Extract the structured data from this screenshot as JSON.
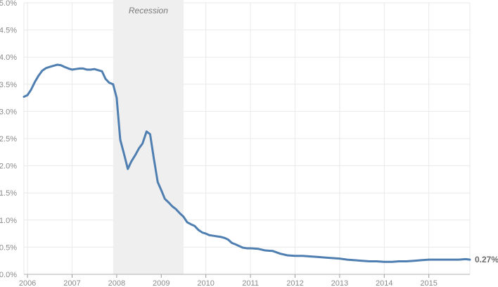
{
  "chart_data": {
    "type": "line",
    "x_unit": "year",
    "xlim": [
      2005.92,
      2015.92
    ],
    "ylim": [
      0,
      5.0
    ],
    "grid": true,
    "legend": "none",
    "y_ticks": [
      "0.0%",
      "0.5%",
      "1.0%",
      "1.5%",
      "2.0%",
      "2.5%",
      "3.0%",
      "3.5%",
      "4.0%",
      "4.5%",
      "5.0%"
    ],
    "x_ticks": [
      "2006",
      "2007",
      "2008",
      "2009",
      "2010",
      "2011",
      "2012",
      "2013",
      "2014",
      "2015"
    ],
    "recession": {
      "label": "Recession",
      "start": 2007.92,
      "end": 2009.5
    },
    "end_label": "0.27%",
    "colors": {
      "line": "#4f7eb0",
      "recession_fill": "#efefef",
      "grid": "#e9e9e9"
    },
    "series": [
      {
        "x": [
          2005.92,
          2006.0,
          2006.08,
          2006.17,
          2006.25,
          2006.33,
          2006.42,
          2006.5,
          2006.58,
          2006.67,
          2006.75,
          2006.83,
          2006.92,
          2007.0,
          2007.08,
          2007.17,
          2007.25,
          2007.33,
          2007.42,
          2007.5,
          2007.58,
          2007.67,
          2007.75,
          2007.83,
          2007.92,
          2008.0,
          2008.08,
          2008.17,
          2008.25,
          2008.33,
          2008.42,
          2008.5,
          2008.58,
          2008.67,
          2008.75,
          2008.83,
          2008.92,
          2009.0,
          2009.08,
          2009.17,
          2009.25,
          2009.33,
          2009.42,
          2009.5,
          2009.58,
          2009.67,
          2009.75,
          2009.83,
          2009.92,
          2010.0,
          2010.08,
          2010.17,
          2010.25,
          2010.33,
          2010.42,
          2010.5,
          2010.58,
          2010.67,
          2010.75,
          2010.83,
          2010.92,
          2011.0,
          2011.17,
          2011.33,
          2011.5,
          2011.67,
          2011.83,
          2012.0,
          2012.17,
          2012.33,
          2012.5,
          2012.67,
          2012.83,
          2013.0,
          2013.17,
          2013.33,
          2013.5,
          2013.67,
          2013.83,
          2014.0,
          2014.17,
          2014.33,
          2014.5,
          2014.67,
          2014.83,
          2015.0,
          2015.17,
          2015.33,
          2015.5,
          2015.67,
          2015.83,
          2015.92
        ],
        "values": [
          3.27,
          3.3,
          3.4,
          3.55,
          3.66,
          3.75,
          3.8,
          3.82,
          3.84,
          3.86,
          3.85,
          3.82,
          3.79,
          3.77,
          3.78,
          3.79,
          3.79,
          3.77,
          3.77,
          3.78,
          3.76,
          3.74,
          3.6,
          3.53,
          3.5,
          3.25,
          2.48,
          2.2,
          1.94,
          2.08,
          2.2,
          2.32,
          2.41,
          2.63,
          2.58,
          2.15,
          1.7,
          1.55,
          1.39,
          1.32,
          1.25,
          1.2,
          1.12,
          1.06,
          0.96,
          0.92,
          0.89,
          0.82,
          0.77,
          0.75,
          0.72,
          0.71,
          0.7,
          0.69,
          0.67,
          0.64,
          0.58,
          0.55,
          0.52,
          0.49,
          0.48,
          0.48,
          0.47,
          0.44,
          0.43,
          0.38,
          0.35,
          0.34,
          0.34,
          0.33,
          0.32,
          0.31,
          0.3,
          0.29,
          0.27,
          0.26,
          0.25,
          0.24,
          0.24,
          0.23,
          0.23,
          0.24,
          0.24,
          0.25,
          0.26,
          0.27,
          0.27,
          0.27,
          0.27,
          0.27,
          0.28,
          0.27
        ]
      }
    ]
  }
}
